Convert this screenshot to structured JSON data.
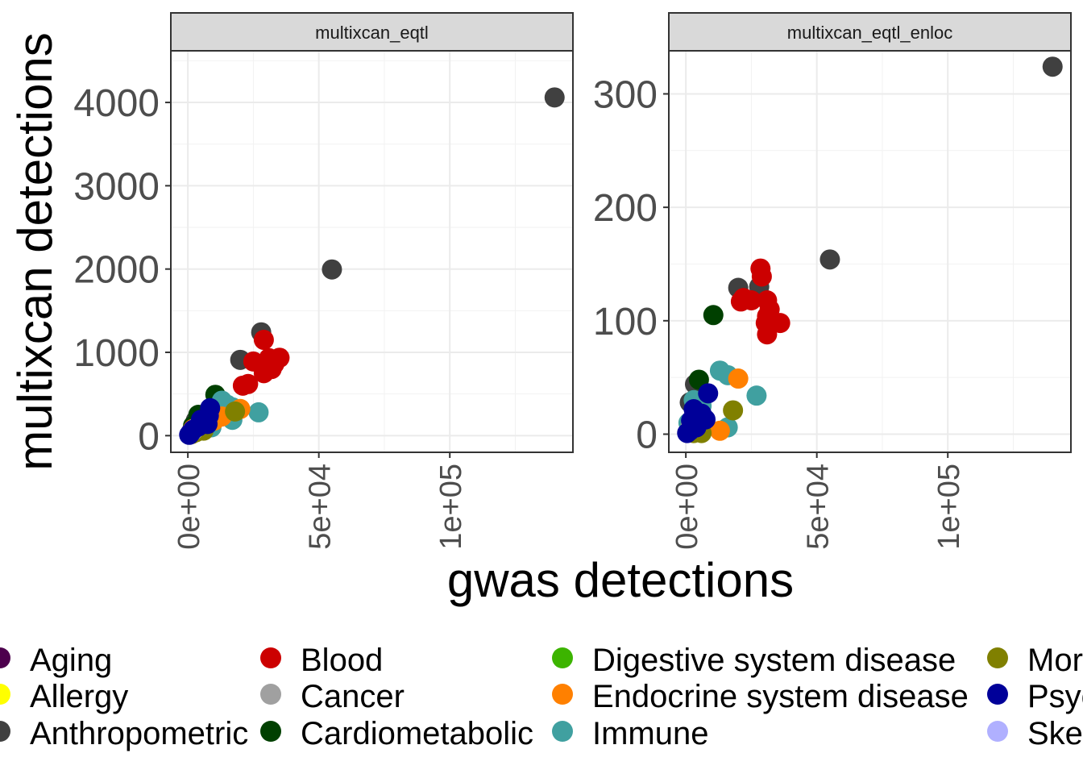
{
  "chart_data": {
    "type": "scatter",
    "xlabel": "gwas detections",
    "ylabel": "multixcan detections",
    "x_ticks": [
      {
        "value": 0,
        "label": "0e+00"
      },
      {
        "value": 50000,
        "label": "5e+04"
      },
      {
        "value": 100000,
        "label": "1e+05"
      }
    ],
    "xlim": [
      -6500,
      147000
    ],
    "colors": {
      "Aging": "#4d004d",
      "Allergy": "#ffff00",
      "Anthropometric": "#404040",
      "Blood": "#cc0000",
      "Cancer": "#a0a0a0",
      "Cardiometabolic": "#004000",
      "Digestive system disease": "#3cb400",
      "Endocrine system disease": "#ff8000",
      "Immune": "#40a0a0",
      "Morphology": "#808000",
      "Psychiatric": "#000099",
      "Skeletal": "#b0b0ff"
    },
    "panels": [
      {
        "title": "multixcan_eqtl",
        "ylim": [
          -200,
          4620
        ],
        "y_ticks": [
          {
            "value": 0,
            "label": "0"
          },
          {
            "value": 1000,
            "label": "1000"
          },
          {
            "value": 2000,
            "label": "2000"
          },
          {
            "value": 3000,
            "label": "3000"
          },
          {
            "value": 4000,
            "label": "4000"
          }
        ],
        "series": [
          {
            "name": "Anthropometric",
            "points": [
              [
                140000,
                4060
              ],
              [
                55000,
                1995
              ],
              [
                28000,
                1240
              ],
              [
                20000,
                910
              ],
              [
                3000,
                180
              ],
              [
                1500,
                60
              ]
            ]
          },
          {
            "name": "Blood",
            "points": [
              [
                29000,
                1150
              ],
              [
                25000,
                890
              ],
              [
                31000,
                930
              ],
              [
                35000,
                935
              ],
              [
                33000,
                860
              ],
              [
                32000,
                800
              ],
              [
                29000,
                750
              ],
              [
                23000,
                620
              ],
              [
                21000,
                600
              ]
            ]
          },
          {
            "name": "Cardiometabolic",
            "points": [
              [
                10500,
                490
              ],
              [
                4000,
                250
              ],
              [
                2000,
                120
              ]
            ]
          },
          {
            "name": "Immune",
            "points": [
              [
                13000,
                420
              ],
              [
                15000,
                370
              ],
              [
                17000,
                340
              ],
              [
                27000,
                280
              ],
              [
                17000,
                190
              ],
              [
                6000,
                160
              ],
              [
                9000,
                100
              ],
              [
                3000,
                80
              ]
            ]
          },
          {
            "name": "Endocrine system disease",
            "points": [
              [
                20000,
                320
              ],
              [
                13000,
                230
              ],
              [
                10000,
                180
              ],
              [
                5000,
                130
              ],
              [
                2000,
                80
              ],
              [
                1000,
                30
              ]
            ]
          },
          {
            "name": "Morphology",
            "points": [
              [
                18000,
                290
              ],
              [
                6000,
                60
              ],
              [
                3000,
                40
              ],
              [
                1500,
                20
              ]
            ]
          },
          {
            "name": "Cancer",
            "points": [
              [
                4000,
                120
              ],
              [
                2000,
                60
              ],
              [
                1000,
                30
              ]
            ]
          },
          {
            "name": "Psychiatric",
            "points": [
              [
                8500,
                330
              ],
              [
                8000,
                240
              ],
              [
                7500,
                140
              ],
              [
                5000,
                190
              ],
              [
                4000,
                110
              ],
              [
                2000,
                70
              ],
              [
                1000,
                30
              ],
              [
                500,
                10
              ]
            ]
          }
        ]
      },
      {
        "title": "multixcan_eqtl_enloc",
        "ylim": [
          -16,
          338
        ],
        "y_ticks": [
          {
            "value": 0,
            "label": "0"
          },
          {
            "value": 100,
            "label": "100"
          },
          {
            "value": 200,
            "label": "200"
          },
          {
            "value": 300,
            "label": "300"
          }
        ],
        "series": [
          {
            "name": "Anthropometric",
            "points": [
              [
                140000,
                324
              ],
              [
                55000,
                154
              ],
              [
                20000,
                129
              ],
              [
                28000,
                130
              ],
              [
                3500,
                44
              ],
              [
                1500,
                28
              ]
            ]
          },
          {
            "name": "Blood",
            "points": [
              [
                28500,
                146
              ],
              [
                29000,
                139
              ],
              [
                22000,
                120
              ],
              [
                21000,
                117
              ],
              [
                25000,
                118
              ],
              [
                31000,
                118
              ],
              [
                32000,
                110
              ],
              [
                31000,
                104
              ],
              [
                30500,
                98
              ],
              [
                36000,
                98
              ],
              [
                31000,
                88
              ]
            ]
          },
          {
            "name": "Cardiometabolic",
            "points": [
              [
                10500,
                105
              ],
              [
                5000,
                48
              ],
              [
                3000,
                30
              ]
            ]
          },
          {
            "name": "Immune",
            "points": [
              [
                13000,
                56
              ],
              [
                16000,
                52
              ],
              [
                27000,
                34
              ],
              [
                3000,
                30
              ],
              [
                16000,
                6
              ],
              [
                6000,
                25
              ],
              [
                1000,
                10
              ]
            ]
          },
          {
            "name": "Endocrine system disease",
            "points": [
              [
                20000,
                49
              ],
              [
                13000,
                3
              ],
              [
                6000,
                14
              ],
              [
                2000,
                8
              ]
            ]
          },
          {
            "name": "Morphology",
            "points": [
              [
                18000,
                21
              ],
              [
                6000,
                1
              ],
              [
                3000,
                1
              ]
            ]
          },
          {
            "name": "Cancer",
            "points": [
              [
                4000,
                14
              ],
              [
                2000,
                8
              ]
            ]
          },
          {
            "name": "Psychiatric",
            "points": [
              [
                8500,
                36
              ],
              [
                3000,
                22
              ],
              [
                6000,
                18
              ],
              [
                7500,
                13
              ],
              [
                2000,
                12
              ],
              [
                4000,
                6
              ],
              [
                1500,
                3
              ],
              [
                500,
                1
              ]
            ]
          }
        ]
      }
    ],
    "legend": {
      "position": "bottom",
      "entries": [
        "Aging",
        "Allergy",
        "Anthropometric",
        "Blood",
        "Cancer",
        "Cardiometabolic",
        "Digestive system disease",
        "Endocrine system disease",
        "Immune",
        "Morphology",
        "Psychiatric",
        "Skeletal"
      ]
    }
  }
}
